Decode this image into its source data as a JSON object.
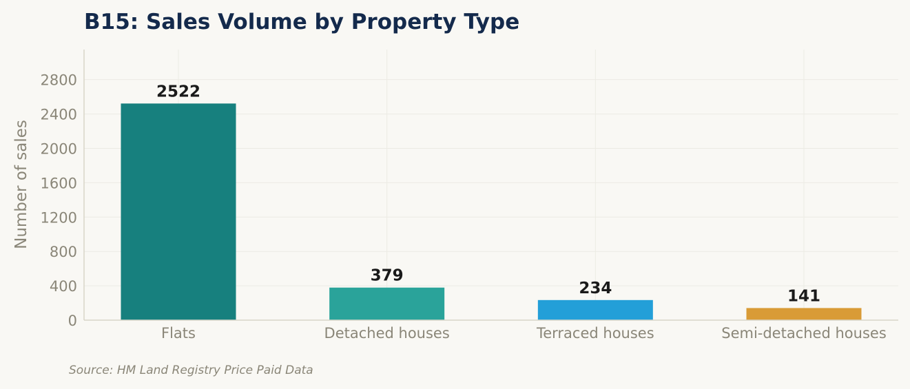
{
  "chart_data": {
    "type": "bar",
    "title": "B15: Sales Volume by Property Type",
    "ylabel": "Number of sales",
    "xlabel": "",
    "categories": [
      "Flats",
      "Detached houses",
      "Terraced houses",
      "Semi-detached houses"
    ],
    "values": [
      2522,
      379,
      234,
      141
    ],
    "colors": [
      "#17807e",
      "#2aa39a",
      "#239fd8",
      "#d99b36"
    ],
    "ylim": [
      0,
      3150
    ],
    "yticks": [
      0,
      400,
      800,
      1200,
      1600,
      2000,
      2400,
      2800
    ],
    "grid": true,
    "source": "Source: HM Land Registry Price Paid Data"
  }
}
